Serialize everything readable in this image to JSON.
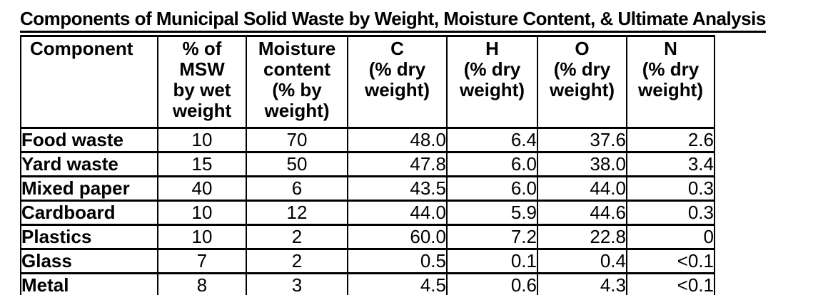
{
  "title": "Components of Municipal Solid Waste by Weight, Moisture Content, & Ultimate Analysis",
  "table": {
    "columns": [
      {
        "label": "Component"
      },
      {
        "label": "% of\nMSW\nby wet\nweight"
      },
      {
        "label": "Moisture\ncontent\n(% by\nweight)"
      },
      {
        "label": "C\n(% dry\nweight)"
      },
      {
        "label": "H\n(% dry\nweight)"
      },
      {
        "label": "O\n(% dry\nweight)"
      },
      {
        "label": "N\n(% dry\nweight)"
      }
    ],
    "rows": [
      {
        "component": "Food waste",
        "pct_msw": "10",
        "moisture": "70",
        "c": "48.0",
        "h": "6.4",
        "o": "37.6",
        "n": "2.6"
      },
      {
        "component": "Yard waste",
        "pct_msw": "15",
        "moisture": "50",
        "c": "47.8",
        "h": "6.0",
        "o": "38.0",
        "n": "3.4"
      },
      {
        "component": "Mixed paper",
        "pct_msw": "40",
        "moisture": "6",
        "c": "43.5",
        "h": "6.0",
        "o": "44.0",
        "n": "0.3"
      },
      {
        "component": "Cardboard",
        "pct_msw": "10",
        "moisture": "12",
        "c": "44.0",
        "h": "5.9",
        "o": "44.6",
        "n": "0.3"
      },
      {
        "component": "Plastics",
        "pct_msw": "10",
        "moisture": "2",
        "c": "60.0",
        "h": "7.2",
        "o": "22.8",
        "n": "0"
      },
      {
        "component": "Glass",
        "pct_msw": "7",
        "moisture": "2",
        "c": "0.5",
        "h": "0.1",
        "o": "0.4",
        "n": "<0.1"
      },
      {
        "component": "Metal",
        "pct_msw": "8",
        "moisture": "3",
        "c": "4.5",
        "h": "0.6",
        "o": "4.3",
        "n": "<0.1"
      }
    ]
  }
}
